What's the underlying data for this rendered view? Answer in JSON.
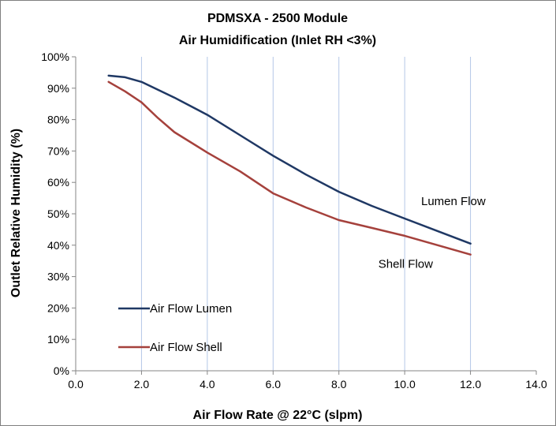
{
  "chart_data": {
    "type": "line",
    "title": "PDMSXA - 2500 Module",
    "subtitle": "Air Humidification (Inlet RH <3%)",
    "xlabel": "Air Flow Rate @ 22°C (slpm)",
    "ylabel": "Outlet Relative Humidity (%)",
    "xlim": [
      0,
      14
    ],
    "ylim": [
      0,
      100
    ],
    "x_ticks": [
      "0.0",
      "2.0",
      "4.0",
      "6.0",
      "8.0",
      "10.0",
      "12.0",
      "14.0"
    ],
    "y_ticks": [
      "0%",
      "10%",
      "20%",
      "30%",
      "40%",
      "50%",
      "60%",
      "70%",
      "80%",
      "90%",
      "100%"
    ],
    "grid": "vertical",
    "legend_placement": "bottom-left",
    "series": [
      {
        "name": "Air Flow Lumen",
        "color": "#1f3864",
        "x": [
          1.0,
          1.5,
          2.0,
          3.0,
          4.0,
          5.0,
          6.0,
          7.0,
          8.0,
          9.0,
          10.0,
          11.0,
          12.0
        ],
        "y": [
          94,
          93.5,
          92,
          87,
          81.5,
          75,
          68.5,
          62.5,
          57,
          52.5,
          48.5,
          44.5,
          40.5
        ]
      },
      {
        "name": "Air Flow Shell",
        "color": "#a5413c",
        "x": [
          1.0,
          1.5,
          2.0,
          2.5,
          3.0,
          4.0,
          5.0,
          6.0,
          7.0,
          8.0,
          9.0,
          10.0,
          11.0,
          12.0
        ],
        "y": [
          92,
          89,
          85.5,
          80.5,
          76,
          69.5,
          63.5,
          56.5,
          52,
          48,
          45.5,
          43,
          40,
          37
        ]
      }
    ],
    "annotations": [
      {
        "text": "Lumen Flow",
        "x": 10.5,
        "y": 54
      },
      {
        "text": "Shell Flow",
        "x": 9.2,
        "y": 34
      }
    ]
  }
}
